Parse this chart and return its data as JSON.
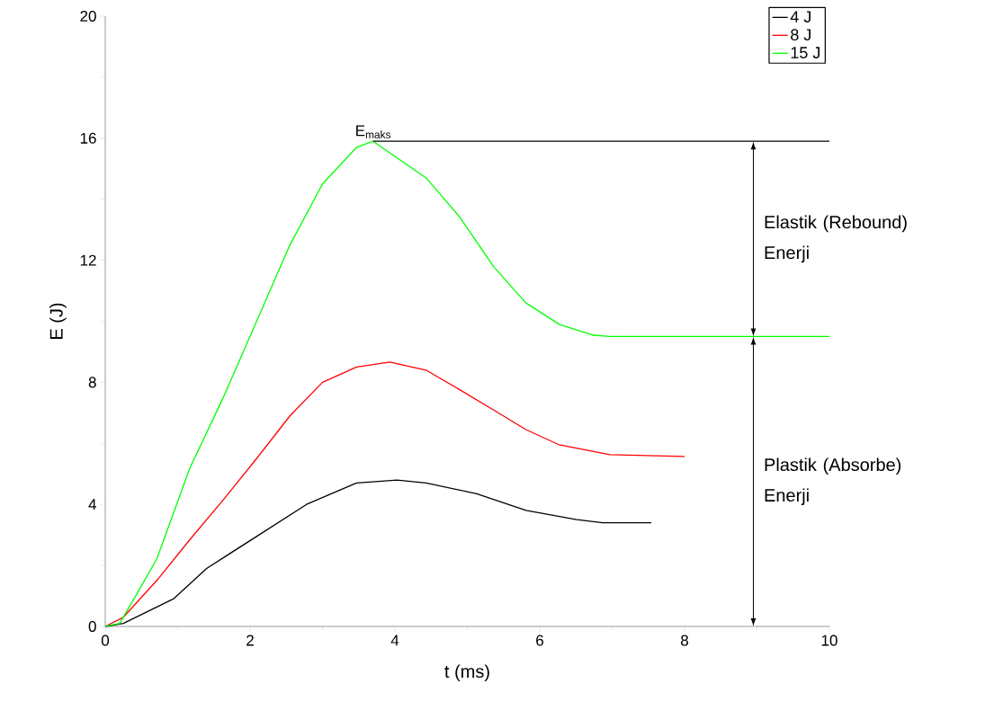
{
  "chart_data": {
    "type": "line",
    "xlabel": "t (ms)",
    "ylabel": "E (J)",
    "xlim": [
      0,
      10
    ],
    "ylim": [
      0,
      20
    ],
    "xticks": [
      0,
      2,
      4,
      6,
      8,
      10
    ],
    "yticks": [
      0,
      4,
      8,
      12,
      16,
      20
    ],
    "legend": "top right",
    "grid": false,
    "marker": "none",
    "line_style": "solid",
    "series": [
      {
        "name": "4 J",
        "color": "#000000",
        "x": [
          0,
          0.25,
          0.94,
          1.4,
          2.09,
          2.78,
          3.47,
          4.03,
          4.43,
          5.13,
          5.81,
          6.51,
          6.87,
          7.54
        ],
        "values": [
          0,
          0.1,
          0.9,
          1.9,
          2.95,
          4.0,
          4.7,
          4.8,
          4.7,
          4.35,
          3.8,
          3.5,
          3.4,
          3.4
        ]
      },
      {
        "name": "8 J",
        "color": "#ff0000",
        "x": [
          0,
          0.25,
          0.71,
          1.17,
          1.63,
          2.09,
          2.55,
          3.0,
          3.47,
          3.93,
          4.43,
          4.9,
          5.36,
          5.81,
          6.27,
          6.97,
          8.0
        ],
        "values": [
          0,
          0.3,
          1.5,
          2.85,
          4.15,
          5.5,
          6.9,
          8.0,
          8.5,
          8.66,
          8.4,
          7.75,
          7.1,
          6.45,
          5.95,
          5.63,
          5.57
        ]
      },
      {
        "name": "15 J",
        "color": "#00ff00",
        "x": [
          0,
          0.2,
          0.39,
          0.71,
          1.17,
          1.63,
          2.09,
          2.55,
          3.0,
          3.47,
          3.7,
          4.43,
          4.9,
          5.36,
          5.81,
          6.27,
          6.73,
          6.97,
          10
        ],
        "values": [
          0,
          0.1,
          0.88,
          2.2,
          5.2,
          7.5,
          10.0,
          12.5,
          14.5,
          15.7,
          15.9,
          14.7,
          13.4,
          11.8,
          10.6,
          9.9,
          9.55,
          9.5,
          9.5
        ]
      },
      {
        "color": "#000000",
        "x": [
          3.7,
          10
        ],
        "values": [
          15.9,
          15.9
        ]
      }
    ],
    "annotations": [
      "E$_{maks}$",
      "Elastik (Rebound) Enerji",
      "Plastik (Absorbe) Enerji"
    ]
  }
}
